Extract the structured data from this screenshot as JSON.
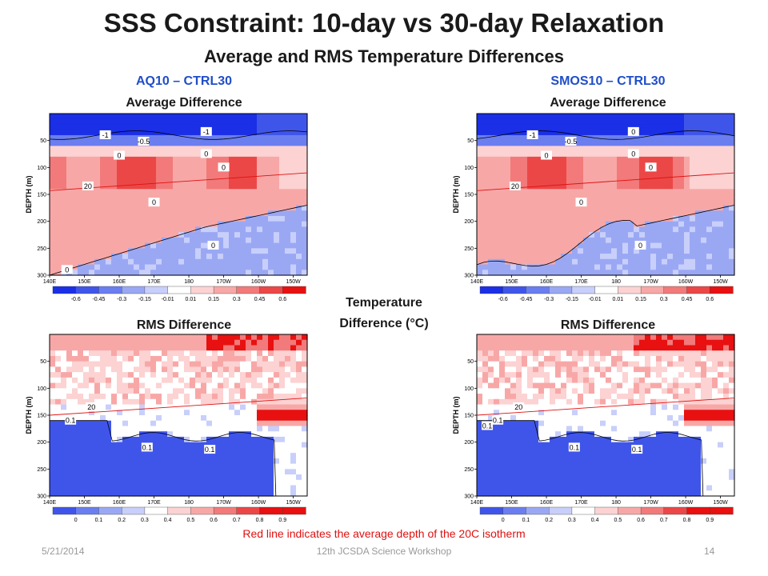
{
  "slide": {
    "title": "SSS Constraint:  10-day vs 30-day Relaxation",
    "subtitle": "Average and RMS Temperature Differences",
    "left_heading": "AQ10 – CTRL30",
    "right_heading": "SMOS10 – CTRL30",
    "avg_label": "Average Difference",
    "rms_label": "RMS Difference",
    "legend_title": "Temperature Difference (°C)",
    "note": "Red line indicates the average depth of the 20C isotherm",
    "footer_date": "5/21/2014",
    "footer_center": "12th JCSDA Science Workshop",
    "footer_page": "14"
  },
  "colors": {
    "title": "#1a1a1a",
    "heading_blue": "#1f4ec8",
    "note_red": "#e01010",
    "footer_gray": "#999999",
    "diverging": [
      "#1a2fe6",
      "#3f55ea",
      "#6a7ef0",
      "#9aa8f4",
      "#c8cffa",
      "#ffffff",
      "#fcd2d2",
      "#f8a7a7",
      "#f27a7a",
      "#ec4747",
      "#e81010"
    ]
  },
  "chart_data": [
    {
      "type": "heatmap",
      "panel": "AQ10-CTRL30 average difference",
      "xlabel": "",
      "ylabel": "DEPTH (m)",
      "x_ticks": [
        "140E",
        "150E",
        "160E",
        "170E",
        "180",
        "170W",
        "160W",
        "150W"
      ],
      "y_ticks": [
        "50",
        "100",
        "150",
        "200",
        "250",
        "300"
      ],
      "ylim": [
        300,
        0
      ],
      "colorbar_ticks": [
        "-0.6",
        "-0.45",
        "-0.3",
        "-0.15",
        "-0.01",
        "0.01",
        "0.15",
        "0.3",
        "0.45",
        "0.6"
      ],
      "contour_labels": [
        "-1",
        "-0.5",
        "0",
        "-1",
        "0",
        "20",
        "0",
        "0",
        "0",
        "0"
      ],
      "red_line_20C_depth": [
        {
          "x": "140E",
          "depth": 143
        },
        {
          "x": "150W",
          "depth": 110
        }
      ],
      "zero_contour": [
        [
          140,
          163
        ],
        [
          150,
          166
        ],
        [
          160,
          168
        ],
        [
          170,
          168
        ],
        [
          180,
          166
        ],
        [
          190,
          160
        ],
        [
          200,
          155
        ],
        [
          206,
          150
        ],
        [
          214,
          147
        ]
      ],
      "bands": [
        {
          "region": "surface (0-50 m)",
          "value": -0.6
        },
        {
          "region": "thermocline (80-140 m)",
          "value": 0.45
        },
        {
          "region": "west below 160 m",
          "value": 0.15
        },
        {
          "region": "east below 160 m",
          "value": -0.15
        }
      ]
    },
    {
      "type": "heatmap",
      "panel": "SMOS10-CTRL30 average difference",
      "xlabel": "",
      "ylabel": "DEPTH (m)",
      "x_ticks": [
        "140E",
        "150E",
        "160E",
        "170E",
        "180",
        "170W",
        "160W",
        "150W"
      ],
      "y_ticks": [
        "50",
        "100",
        "150",
        "200",
        "250",
        "300"
      ],
      "ylim": [
        300,
        0
      ],
      "colorbar_ticks": [
        "-0.6",
        "-0.45",
        "-0.3",
        "-0.15",
        "-0.01",
        "0.01",
        "0.15",
        "0.3",
        "0.45",
        "0.6"
      ],
      "contour_labels": [
        "-1",
        "-0.5",
        "0",
        "0",
        "0",
        "20",
        "0",
        "0",
        "0"
      ],
      "red_line_20C_depth": [
        {
          "x": "140E",
          "depth": 143
        },
        {
          "x": "150W",
          "depth": 110
        }
      ],
      "bands": [
        {
          "region": "surface (0-50 m)",
          "value": -0.6
        },
        {
          "region": "thermocline (80-140 m)",
          "value": 0.45
        },
        {
          "region": "west below 160 m",
          "value": 0.15
        },
        {
          "region": "east below 160 m",
          "value": -0.15
        }
      ]
    },
    {
      "type": "heatmap",
      "panel": "AQ10-CTRL30 RMS difference",
      "xlabel": "",
      "ylabel": "DEPTH (m)",
      "x_ticks": [
        "140E",
        "150E",
        "160E",
        "170E",
        "180",
        "170W",
        "160W",
        "150W"
      ],
      "y_ticks": [
        "50",
        "100",
        "150",
        "200",
        "250",
        "300"
      ],
      "ylim": [
        300,
        0
      ],
      "colorbar_ticks": [
        "0",
        "0.1",
        "0.2",
        "0.3",
        "0.4",
        "0.5",
        "0.6",
        "0.7",
        "0.8",
        "0.9"
      ],
      "contour_labels": [
        "0.1",
        "20",
        "0.1",
        "0.1"
      ],
      "red_line_20C_depth": [
        {
          "x": "140E",
          "depth": 150
        },
        {
          "x": "150W",
          "depth": 118
        }
      ],
      "bands": [
        {
          "region": "surface (0-50 m)",
          "value": 0.5
        },
        {
          "region": "east near 150 m",
          "value": 0.9
        },
        {
          "region": "below 0.1 contour",
          "value": 0.05
        }
      ]
    },
    {
      "type": "heatmap",
      "panel": "SMOS10-CTRL30 RMS difference",
      "xlabel": "",
      "ylabel": "DEPTH (m)",
      "x_ticks": [
        "140E",
        "150E",
        "160E",
        "170E",
        "180",
        "170W",
        "160W",
        "150W"
      ],
      "y_ticks": [
        "50",
        "100",
        "150",
        "200",
        "250",
        "300"
      ],
      "ylim": [
        300,
        0
      ],
      "colorbar_ticks": [
        "0",
        "0.1",
        "0.2",
        "0.3",
        "0.4",
        "0.5",
        "0.6",
        "0.7",
        "0.8",
        "0.9"
      ],
      "contour_labels": [
        "0.1",
        "20",
        "0.1",
        "0.1",
        "0.1"
      ],
      "red_line_20C_depth": [
        {
          "x": "140E",
          "depth": 150
        },
        {
          "x": "150W",
          "depth": 118
        }
      ],
      "bands": [
        {
          "region": "surface (0-50 m)",
          "value": 0.5
        },
        {
          "region": "east near 150 m",
          "value": 0.9
        },
        {
          "region": "below 0.1 contour",
          "value": 0.05
        }
      ]
    }
  ]
}
